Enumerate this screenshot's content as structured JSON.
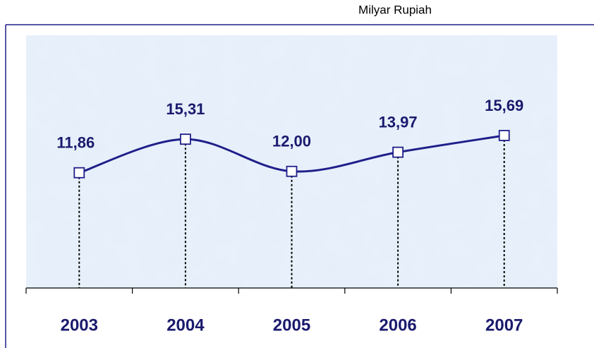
{
  "chart_data": {
    "type": "line",
    "subtitle": "Milyar Rupiah",
    "categories": [
      "2003",
      "2004",
      "2005",
      "2006",
      "2007"
    ],
    "series": [
      {
        "color": "#1f1f8a",
        "values": [
          11.86,
          15.31,
          12.0,
          13.97,
          15.69
        ],
        "value_labels": [
          "11,86",
          "15,31",
          "12,00",
          "13,97",
          "15,69"
        ]
      }
    ],
    "ylim": [
      0,
      26
    ]
  }
}
